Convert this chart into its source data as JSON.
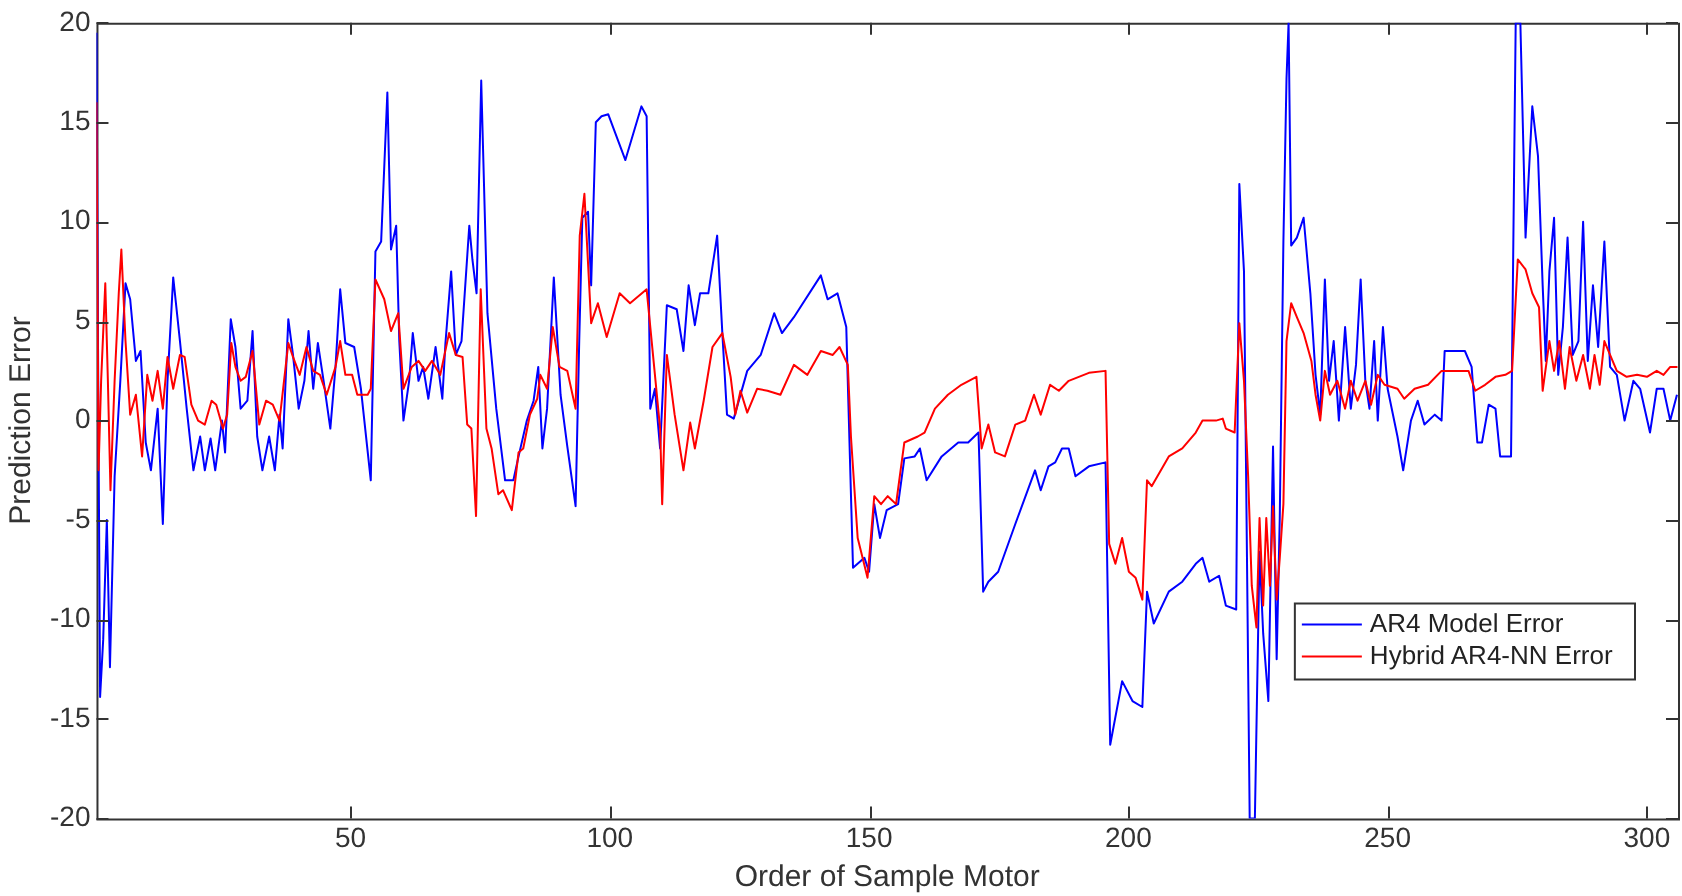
{
  "chart_data": {
    "type": "line",
    "xlabel": "Order of Sample Motor",
    "ylabel": "Prediction Error",
    "xlim": [
      1,
      306
    ],
    "xticks": [
      50,
      100,
      150,
      200,
      250,
      300
    ],
    "ylim": [
      -20,
      20
    ],
    "yticks": [
      -20,
      -15,
      -10,
      -5,
      0,
      5,
      10,
      15,
      20
    ],
    "grid": false,
    "legend": "bottom right",
    "marker": "none",
    "line_style": "solid",
    "series": [
      {
        "name": "AR4 Model Error",
        "color": "#0000ff",
        "x": [
          1,
          1.3,
          1.7,
          2.3,
          3,
          3.6,
          4.5,
          5.6,
          6.6,
          7.5,
          8.6,
          9.5,
          10.5,
          11.5,
          12.8,
          13.8,
          14.7,
          15.8,
          17.1,
          18.4,
          19.7,
          21,
          21.9,
          23,
          23.9,
          25.2,
          25.8,
          26.9,
          27.8,
          28.8,
          30.1,
          31.1,
          32,
          33,
          34.3,
          35.4,
          36.3,
          36.9,
          38,
          38.9,
          40,
          41.1,
          41.9,
          42.8,
          43.7,
          44.8,
          46.1,
          47.1,
          48,
          49,
          50.7,
          52,
          53.9,
          54.8,
          55.9,
          57.1,
          57.8,
          58.8,
          59.4,
          60.2,
          61.3,
          62,
          63.1,
          64,
          65,
          66.4,
          67.7,
          68.3,
          69.4,
          70.3,
          71.4,
          72.9,
          73.5,
          74.3,
          75.2,
          76.4,
          78.1,
          79.8,
          81.4,
          82.4,
          84,
          85.3,
          86.2,
          87,
          87.9,
          89.2,
          90.5,
          91.8,
          93.4,
          94.1,
          94.7,
          95.8,
          96.4,
          97.3,
          98.4,
          99.7,
          103,
          106.1,
          107.1,
          107.8,
          108.7,
          109.7,
          111,
          112.9,
          114.2,
          115.2,
          116.4,
          117.4,
          119,
          120.7,
          121.7,
          122.6,
          123.9,
          126.5,
          129.1,
          131.7,
          133.2,
          135.5,
          140.7,
          142,
          143.9,
          145.6,
          146.9,
          149.1,
          150,
          151,
          152.1,
          153.4,
          155.6,
          156.8,
          158.8,
          159.8,
          161.1,
          164,
          167.2,
          169.1,
          171.1,
          172,
          173,
          174.9,
          178.2,
          182,
          183.1,
          184.6,
          185.9,
          187.2,
          188.5,
          189.8,
          192.4,
          195.6,
          196.5,
          198.8,
          200.8,
          202.7,
          203.6,
          204.9,
          207.8,
          210.4,
          213,
          214.3,
          215.6,
          217.5,
          218.8,
          220.8,
          221.4,
          222.3,
          223.4,
          224.4,
          225.3,
          226,
          227,
          227.9,
          228.6,
          229.2,
          229.9,
          230.5,
          230.9,
          231.4,
          232.5,
          233.8,
          235.1,
          236.1,
          237,
          237.9,
          238.7,
          239.6,
          240.6,
          241.8,
          242.9,
          243.9,
          244.8,
          245.7,
          246.5,
          247.4,
          248.1,
          249.1,
          250,
          251.9,
          253,
          254.5,
          255.8,
          257.1,
          259.1,
          260.4,
          261,
          264.9,
          266.2,
          267.3,
          268.2,
          269.5,
          270.8,
          271.7,
          273.8,
          274.7,
          275.6,
          276.6,
          277.9,
          279,
          279.9,
          280.5,
          281.2,
          282.1,
          282.9,
          283.8,
          284.7,
          285.7,
          286.8,
          287.7,
          288.6,
          289.6,
          290.6,
          291.8,
          292.9,
          294.2,
          295.7,
          297.4,
          298.7,
          300.6,
          301.9,
          303.2,
          304.5,
          305.8
        ],
        "values": [
          19.5,
          3.7,
          -13.9,
          -11,
          -5,
          -12.4,
          -2.8,
          2,
          6.9,
          6.1,
          3,
          3.5,
          -1.1,
          -2.5,
          0.6,
          -5.2,
          2,
          7.2,
          4,
          0.6,
          -2.5,
          -0.8,
          -2.5,
          -0.9,
          -2.5,
          0,
          -1.6,
          5.1,
          3.7,
          0.6,
          1,
          4.5,
          -0.8,
          -2.5,
          -0.8,
          -2.5,
          0.3,
          -1.4,
          5.1,
          3.3,
          0.6,
          2,
          4.5,
          1.6,
          3.9,
          2,
          -0.4,
          2.7,
          6.6,
          3.9,
          3.7,
          1.6,
          -3,
          8.5,
          9,
          16.5,
          8.6,
          9.8,
          4,
          0,
          2,
          4.4,
          2,
          2.7,
          1.1,
          3.7,
          1.1,
          3.9,
          7.5,
          3.3,
          4,
          9.8,
          8.1,
          6.4,
          17.1,
          5.4,
          0.6,
          -3,
          -3,
          -1.8,
          0,
          1,
          2.7,
          -1.4,
          0.6,
          7.2,
          1.3,
          -1.3,
          -4.3,
          4,
          10.2,
          10.5,
          6.8,
          15,
          15.3,
          15.4,
          13.1,
          15.8,
          15.3,
          0.6,
          1.6,
          -1.4,
          5.8,
          5.6,
          3.5,
          6.8,
          4.8,
          6.4,
          6.4,
          9.3,
          4.4,
          0.3,
          0.1,
          2.5,
          3.3,
          5.4,
          4.4,
          5.2,
          7.3,
          6.1,
          6.4,
          4.7,
          -7.4,
          -6.9,
          -7.6,
          -4.2,
          -5.9,
          -4.5,
          -4.2,
          -1.9,
          -1.8,
          -1.4,
          -3,
          -1.8,
          -1.1,
          -1.1,
          -0.6,
          -8.6,
          -8.1,
          -7.6,
          -5.2,
          -2.5,
          -3.5,
          -2.3,
          -2.1,
          -1.4,
          -1.4,
          -2.8,
          -2.3,
          -2.1,
          -16.3,
          -13.1,
          -14.1,
          -14.4,
          -8.6,
          -10.2,
          -8.6,
          -8.1,
          -7.2,
          -6.9,
          -8.1,
          -7.8,
          -9.3,
          -9.5,
          11.9,
          7.5,
          -20,
          -20,
          -6.6,
          -10.7,
          -14.1,
          -1.3,
          -12,
          -4.9,
          9,
          17.2,
          20,
          8.8,
          9.2,
          10.2,
          6.4,
          2.3,
          0.3,
          7.1,
          2,
          4,
          0,
          4.7,
          0.6,
          2.8,
          7.1,
          2,
          0.6,
          4,
          0,
          4.7,
          1.6,
          -0.8,
          -2.5,
          0,
          1,
          -0.2,
          0.3,
          0,
          3.5,
          3.5,
          2.7,
          -1.1,
          -1.1,
          0.8,
          0.6,
          -1.8,
          -1.8,
          20,
          20,
          9.2,
          15.8,
          13.3,
          6.8,
          3,
          7.5,
          10.2,
          2.3,
          4.7,
          9.2,
          3.3,
          4,
          10,
          3,
          6.8,
          3.7,
          9,
          2.7,
          2.3,
          0,
          2,
          1.6,
          -0.6,
          1.6,
          1.6,
          0,
          1.3
        ]
      },
      {
        "name": "Hybrid AR4-NN Error",
        "color": "#ff0000",
        "x": [
          1,
          1.4,
          1.9,
          2.7,
          3.2,
          3.7,
          4.5,
          5.3,
          5.8,
          6.6,
          7.5,
          8.6,
          9.8,
          10.8,
          11.8,
          12.8,
          13.8,
          14.7,
          15.8,
          17.1,
          18,
          19.3,
          20.6,
          21.9,
          23.2,
          24.1,
          25.4,
          26.2,
          27,
          27.8,
          28.8,
          29.8,
          31.1,
          32.4,
          33.7,
          35,
          36.3,
          38,
          38.9,
          40.2,
          41.5,
          42.8,
          44.1,
          45.4,
          47.1,
          48,
          49,
          50.3,
          51.3,
          53.3,
          53.9,
          54.8,
          56.5,
          57.8,
          59.2,
          60.2,
          61.8,
          63.1,
          64.4,
          65.7,
          67.3,
          69,
          70.3,
          71.6,
          72.5,
          73.3,
          74.2,
          75.1,
          76.2,
          77.2,
          78.5,
          79.4,
          81.1,
          82.4,
          83.3,
          84.6,
          86,
          86.6,
          87.9,
          89,
          90.3,
          91.8,
          93.4,
          94.2,
          95.1,
          96.4,
          97.7,
          99.4,
          101.9,
          103.9,
          107.1,
          108.7,
          109.7,
          110.1,
          111,
          112.5,
          114.2,
          115.5,
          116.4,
          118.1,
          119.8,
          121.7,
          123.3,
          124.2,
          125.2,
          126.5,
          128.4,
          130.4,
          132.9,
          135.5,
          138.1,
          140.7,
          143,
          144.3,
          145.9,
          146.5,
          147.8,
          149.7,
          151,
          152.3,
          153.6,
          155.2,
          156.8,
          159.4,
          160.7,
          162.7,
          165.2,
          167.8,
          170.7,
          171.7,
          173,
          174.3,
          176.2,
          178.2,
          180.1,
          181.8,
          183.1,
          184.9,
          186.6,
          188.5,
          192.4,
          195.6,
          196.3,
          197.5,
          198.8,
          200.1,
          201.4,
          202.7,
          203.6,
          204.5,
          207.8,
          210.4,
          213,
          214.3,
          216.9,
          218.2,
          218.8,
          220.5,
          221.4,
          222.3,
          223.1,
          223.8,
          224.7,
          225.3,
          226,
          226.6,
          227.3,
          227.9,
          228.6,
          229.2,
          229.9,
          230.5,
          231.4,
          232.5,
          233.8,
          235.3,
          236.1,
          237,
          237.9,
          238.9,
          240.3,
          241.8,
          242.9,
          244.2,
          245.7,
          246.8,
          248.1,
          249.4,
          251.9,
          253.2,
          255.2,
          257.8,
          260.4,
          262.3,
          265.6,
          266.9,
          268.8,
          270.8,
          272.7,
          274,
          275.1,
          276.6,
          277.9,
          279.2,
          279.9,
          281.2,
          282.1,
          283.1,
          284.2,
          285.1,
          286.4,
          287.7,
          289,
          289.9,
          290.9,
          291.8,
          292.9,
          294.2,
          296.1,
          298.1,
          300,
          301.9,
          303.2,
          304.5,
          305.9
        ],
        "values": [
          16,
          -2.5,
          2,
          6.9,
          2,
          -3.5,
          2,
          6.4,
          8.6,
          4,
          0.3,
          1.3,
          -1.8,
          2.3,
          1,
          2.5,
          0.6,
          3.2,
          1.6,
          3.3,
          3.2,
          0.8,
          0,
          -0.2,
          1,
          0.8,
          -0.4,
          0.3,
          3.9,
          2.7,
          2,
          2.2,
          3.5,
          -0.2,
          1,
          0.8,
          0,
          3.9,
          3.2,
          2.3,
          3.7,
          2.5,
          2.3,
          1.3,
          2.7,
          4,
          2.3,
          2.3,
          1.3,
          1.3,
          1.6,
          7.1,
          6.1,
          4.5,
          5.4,
          1.6,
          2.7,
          3,
          2.5,
          3,
          2.3,
          4.4,
          3.3,
          3.2,
          -0.2,
          -0.4,
          -4.8,
          6.6,
          -0.4,
          -1.4,
          -3.7,
          -3.5,
          -4.5,
          -1.6,
          -1.4,
          0.3,
          1.1,
          2.3,
          1.6,
          4.7,
          2.7,
          2.5,
          0.6,
          9.3,
          11.4,
          4.9,
          5.9,
          4.2,
          6.4,
          5.9,
          6.6,
          2.3,
          -0.4,
          -4.2,
          3.3,
          0.3,
          -2.5,
          -0.1,
          -1.4,
          1,
          3.7,
          4.4,
          2.2,
          0.3,
          1.5,
          0.4,
          1.6,
          1.5,
          1.3,
          2.8,
          2.3,
          3.5,
          3.3,
          3.7,
          2.8,
          -0.8,
          -5.9,
          -7.9,
          -3.8,
          -4.2,
          -3.8,
          -4.2,
          -1.1,
          -0.8,
          -0.6,
          0.6,
          1.3,
          1.8,
          2.2,
          -1.4,
          -0.2,
          -1.6,
          -1.8,
          -0.2,
          0,
          1.3,
          0.3,
          1.8,
          1.5,
          2,
          2.4,
          2.5,
          -6.2,
          -7.2,
          -5.9,
          -7.6,
          -7.9,
          -9,
          -3,
          -3.3,
          -1.8,
          -1.4,
          -0.6,
          0,
          0,
          0.1,
          -0.4,
          -0.6,
          4.9,
          2,
          -2.8,
          -8.3,
          -10.4,
          -4.9,
          -9.3,
          -4.9,
          -8.3,
          -4.3,
          -9,
          -6.9,
          -4.2,
          4,
          5.9,
          5.2,
          4.4,
          3,
          1.3,
          0,
          2.5,
          1.3,
          2,
          0.6,
          2,
          1,
          2,
          0.8,
          2.3,
          1.8,
          1.6,
          1.1,
          1.6,
          1.8,
          2.5,
          2.5,
          2.5,
          1.5,
          1.8,
          2.2,
          2.3,
          2.5,
          8.1,
          7.6,
          6.4,
          5.7,
          1.5,
          4,
          2.5,
          4,
          1.6,
          3.7,
          2,
          3.3,
          1.6,
          3.3,
          1.8,
          4,
          3.3,
          2.5,
          2.2,
          2.3,
          2.2,
          2.5,
          2.3,
          2.7,
          2.7
        ]
      }
    ]
  }
}
